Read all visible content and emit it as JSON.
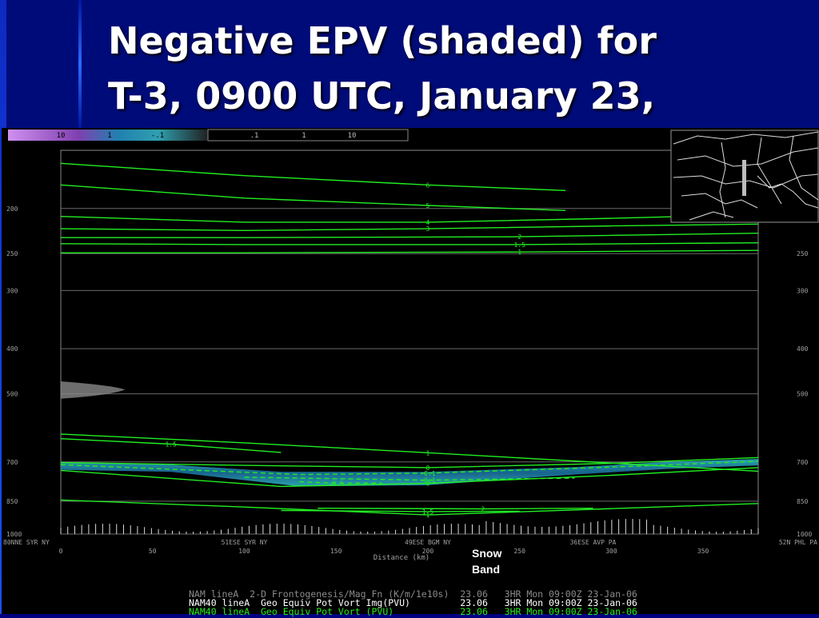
{
  "title": {
    "line1": "Negative EPV (shaded) for",
    "line2": "T-3, 0900 UTC, January 23,"
  },
  "annotation": {
    "line1": "Snow",
    "line2": "Band"
  },
  "colors": {
    "background": "#000b7a",
    "contour": "#22ee22",
    "shade": "#1f8fa0",
    "plot_bg": "#000000"
  },
  "color_bar": {
    "labels": [
      "10",
      "1",
      "-.1",
      ".1",
      "1",
      "10"
    ]
  },
  "footer": [
    {
      "text": "NAM lineA  2-D Frontogenesis/Mag Fn (K/m/1e10s)  23.06   3HR Mon 09:00Z 23-Jan-06",
      "color": "#8a8a8a"
    },
    {
      "text": "NAM40 lineA  Geo Equiv Pot Vort Img(PVU)         23.06   3HR Mon 09:00Z 23-Jan-06",
      "color": "#ffffff"
    },
    {
      "text": "NAM40 lineA  Geo Equiv Pot Vort (PVU)            23.06   3HR Mon 09:00Z 23-Jan-06",
      "color": "#22ee22"
    }
  ],
  "chart_data": {
    "type": "heatmap",
    "title": "",
    "xlabel": "Distance (km)",
    "ylabel": "",
    "xlim": [
      0,
      380
    ],
    "ylim": [
      1000,
      150
    ],
    "y_scale": "log",
    "x_ticks": [
      0,
      50,
      100,
      150,
      200,
      250,
      300,
      350
    ],
    "y_ticks": [
      200,
      250,
      300,
      400,
      500,
      700,
      850,
      1000
    ],
    "y_tick_labels": [
      "200",
      "250",
      "300",
      "400",
      "500",
      "700",
      "850",
      "1000"
    ],
    "location_labels": [
      {
        "x": 0,
        "label": "80NNE SYR NY"
      },
      {
        "x": 100,
        "label": "51ESE SYR NY"
      },
      {
        "x": 200,
        "label": "49ESE BGM NY"
      },
      {
        "x": 290,
        "label": "36ESE AVP PA"
      },
      {
        "x": 380,
        "label": "52N PHL PA"
      }
    ],
    "series": [
      {
        "level": "6",
        "points": [
          [
            0,
            160
          ],
          [
            100,
            170
          ],
          [
            200,
            178
          ],
          [
            275,
            183
          ]
        ]
      },
      {
        "level": "5",
        "points": [
          [
            0,
            178
          ],
          [
            100,
            190
          ],
          [
            200,
            197
          ],
          [
            275,
            202
          ]
        ]
      },
      {
        "level": "4",
        "points": [
          [
            0,
            208
          ],
          [
            100,
            214
          ],
          [
            200,
            214
          ],
          [
            300,
            210
          ],
          [
            380,
            206
          ]
        ]
      },
      {
        "level": "3",
        "points": [
          [
            0,
            221
          ],
          [
            100,
            223
          ],
          [
            200,
            221
          ],
          [
            300,
            218
          ],
          [
            380,
            216
          ]
        ]
      },
      {
        "level": "2",
        "points": [
          [
            0,
            231
          ],
          [
            100,
            231
          ],
          [
            250,
            230
          ],
          [
            380,
            226
          ]
        ]
      },
      {
        "level": "1.5",
        "points": [
          [
            0,
            238
          ],
          [
            100,
            239
          ],
          [
            250,
            239
          ],
          [
            380,
            237
          ]
        ]
      },
      {
        "level": "1",
        "points": [
          [
            0,
            249
          ],
          [
            100,
            249
          ],
          [
            250,
            248
          ],
          [
            380,
            246
          ]
        ]
      },
      {
        "level": "1",
        "points": [
          [
            0,
            610
          ],
          [
            100,
            637
          ],
          [
            200,
            669
          ],
          [
            300,
            704
          ],
          [
            380,
            733
          ]
        ]
      },
      {
        "level": "1",
        "points": [
          [
            0,
            845
          ],
          [
            100,
            875
          ],
          [
            200,
            910
          ],
          [
            300,
            882
          ],
          [
            380,
            860
          ]
        ]
      },
      {
        "level": "1.5",
        "points": [
          [
            0,
            624
          ],
          [
            60,
            641
          ],
          [
            120,
            668
          ]
        ]
      },
      {
        "level": "1.5",
        "points": [
          [
            120,
            890
          ],
          [
            200,
            895
          ],
          [
            250,
            893
          ]
        ]
      },
      {
        "level": "2",
        "points": [
          [
            140,
            880
          ],
          [
            230,
            883
          ],
          [
            290,
            880
          ]
        ]
      },
      {
        "level": "0",
        "points": [
          [
            0,
            702
          ],
          [
            100,
            712
          ],
          [
            200,
            720
          ],
          [
            300,
            705
          ],
          [
            380,
            685
          ]
        ]
      },
      {
        "level": "0",
        "points": [
          [
            0,
            730
          ],
          [
            120,
            790
          ],
          [
            200,
            778
          ],
          [
            300,
            748
          ],
          [
            380,
            720
          ]
        ]
      },
      {
        "level": "-0.1",
        "points": [
          [
            0,
            710
          ],
          [
            130,
            745
          ],
          [
            200,
            740
          ],
          [
            300,
            718
          ],
          [
            380,
            698
          ]
        ]
      },
      {
        "level": "-0.1",
        "points": [
          [
            100,
            755
          ],
          [
            200,
            766
          ],
          [
            280,
            758
          ]
        ]
      },
      {
        "level": "-0.5",
        "points": [
          [
            130,
            772
          ],
          [
            150,
            778
          ],
          [
            175,
            777
          ]
        ]
      }
    ],
    "negative_regions": [
      {
        "name": "mid-level shaded band",
        "x_range": [
          0,
          380
        ],
        "p_range": [
          700,
          790
        ]
      },
      {
        "name": "upper-left shaded patch",
        "x_range": [
          0,
          30
        ],
        "p_range": [
          470,
          510
        ]
      }
    ],
    "contour_labels": [
      "6",
      "5",
      "4",
      "3",
      "2",
      "1.5",
      "1",
      "0",
      "-0.1",
      "-0.5"
    ]
  }
}
